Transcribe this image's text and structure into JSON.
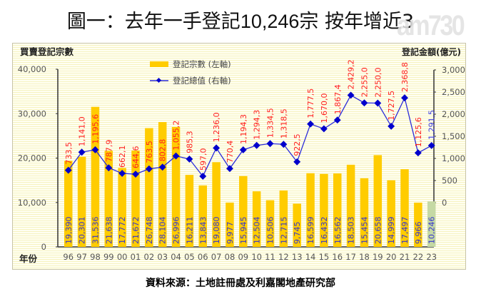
{
  "page": {
    "title_prefix": "圖一：去年一手登記",
    "title_number": "10,246",
    "title_suffix": "宗 按年增近3",
    "watermark": "am730",
    "source": "資料來源：土地註冊處及利嘉閣地產研究部"
  },
  "colors": {
    "bar": "#ffcc00",
    "bar_highlight": "#c5d9a4",
    "line": "#2b2bd9",
    "marker": "#0000cc",
    "line_label": "#ff2020",
    "line_label_highlight": "#3a3ae0",
    "bar_label": "#3535d0",
    "axis": "#333333",
    "tick_label": "#555555"
  },
  "chart_data": {
    "type": "bar+line",
    "title": "圖一：去年一手登記10,246宗 按年增近3",
    "left_axis_title": "買賣登記宗數",
    "right_axis_title": "登記金額(億元)",
    "xlabel": "年份",
    "categories": [
      "96",
      "97",
      "98",
      "99",
      "00",
      "01",
      "02",
      "03",
      "04",
      "05",
      "06",
      "07",
      "08",
      "09",
      "10",
      "11",
      "12",
      "13",
      "14",
      "15",
      "16",
      "17",
      "18",
      "19",
      "20",
      "21",
      "22",
      "23"
    ],
    "left_ylim": [
      0,
      40000
    ],
    "left_ticks": [
      "0",
      "10,000",
      "20,000",
      "30,000",
      "40,000"
    ],
    "right_ylim": [
      0,
      3000
    ],
    "right_ticks": [
      "0",
      "500",
      "1,000",
      "1,500",
      "2,000",
      "2,500",
      "3,000"
    ],
    "legend_position": "top-center",
    "series": [
      {
        "name": "登記宗數 (左軸)",
        "type": "bar",
        "axis": "left",
        "values": [
          19390,
          20301,
          31536,
          21638,
          17772,
          21672,
          26748,
          28104,
          26996,
          16211,
          13843,
          19080,
          9977,
          15945,
          12504,
          10506,
          12715,
          9745,
          16599,
          16432,
          16562,
          18503,
          15454,
          20658,
          14999,
          17497,
          9966,
          10246
        ],
        "labels": [
          "19,390",
          "20,301",
          "31,536",
          "21,638",
          "17,772",
          "21,672",
          "26,748",
          "28,104",
          "26,996",
          "16,211",
          "13,843",
          "19,080",
          "9,977",
          "15,945",
          "12,504",
          "10,506",
          "12,715",
          "9,745",
          "16,599",
          "16,432",
          "16,562",
          "18,503",
          "15,454",
          "20,658",
          "14,999",
          "17,497",
          "9,966",
          "10,246"
        ]
      },
      {
        "name": "登記總值 (右軸)",
        "type": "line",
        "axis": "right",
        "values": [
          733.5,
          1141.0,
          1195.6,
          787.9,
          662.1,
          644.6,
          763.5,
          802.8,
          1055.2,
          985.3,
          597.0,
          1236.0,
          770.4,
          1194.3,
          1294.3,
          1334.5,
          1318.5,
          922.5,
          1777.5,
          1670.0,
          1867.4,
          2429.2,
          2255.0,
          2250.0,
          1727.5,
          2368.8,
          1125.6,
          1291.5
        ],
        "labels": [
          "733,5",
          "1,141,0",
          "1,195,6",
          "787,9",
          "662,1",
          "644,6",
          "763,5",
          "802,8",
          "1,055,2",
          "985,3",
          "597,0",
          "1,236,0",
          "770,4",
          "1,194,3",
          "1,294,3",
          "1,334,5",
          "1,318,5",
          "922,5",
          "1,777,5",
          "1,670,0",
          "1,867,4",
          "2,429,2",
          "2,255,0",
          "2,250,0",
          "1,727,5",
          "2,368,8",
          "1,125,6",
          "1,291,5"
        ]
      }
    ]
  }
}
